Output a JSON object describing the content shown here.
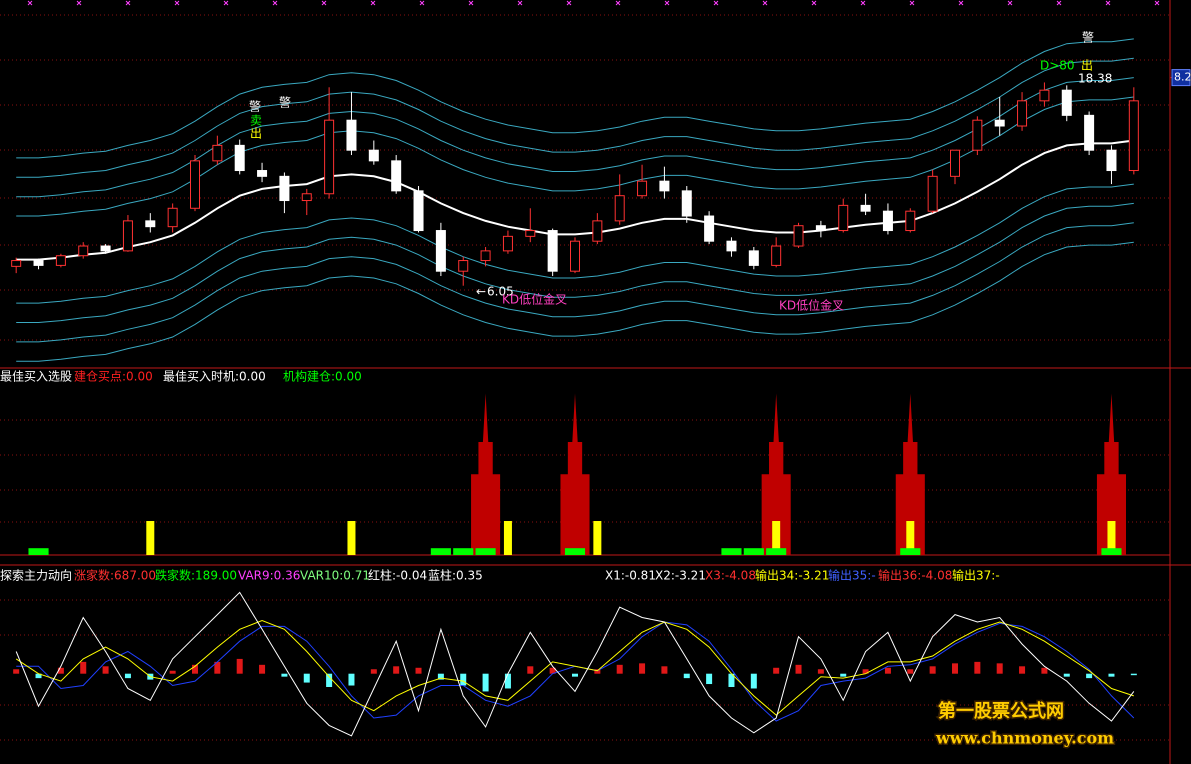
{
  "chart_data": [
    {
      "type": "candlestick",
      "candles": [
        [
          6.25,
          6.34,
          6.18,
          6.31
        ],
        [
          6.31,
          6.33,
          6.22,
          6.26
        ],
        [
          6.26,
          6.38,
          6.24,
          6.36
        ],
        [
          6.36,
          6.5,
          6.33,
          6.46
        ],
        [
          6.46,
          6.48,
          6.38,
          6.41
        ],
        [
          6.41,
          6.78,
          6.4,
          6.72
        ],
        [
          6.72,
          6.8,
          6.6,
          6.66
        ],
        [
          6.66,
          6.9,
          6.6,
          6.85
        ],
        [
          6.85,
          7.4,
          6.82,
          7.34
        ],
        [
          7.34,
          7.6,
          7.3,
          7.5
        ],
        [
          7.5,
          7.56,
          7.2,
          7.24
        ],
        [
          7.24,
          7.32,
          7.12,
          7.18
        ],
        [
          7.18,
          7.22,
          6.8,
          6.93
        ],
        [
          6.93,
          7.05,
          6.78,
          7.0
        ],
        [
          7.0,
          8.1,
          6.95,
          7.76
        ],
        [
          7.76,
          8.05,
          7.4,
          7.45
        ],
        [
          7.45,
          7.55,
          7.3,
          7.34
        ],
        [
          7.34,
          7.4,
          7.0,
          7.03
        ],
        [
          7.03,
          7.08,
          6.6,
          6.62
        ],
        [
          6.62,
          6.7,
          6.15,
          6.2
        ],
        [
          6.2,
          6.35,
          6.05,
          6.31
        ],
        [
          6.31,
          6.45,
          6.25,
          6.41
        ],
        [
          6.41,
          6.62,
          6.38,
          6.56
        ],
        [
          6.56,
          6.85,
          6.5,
          6.62
        ],
        [
          6.62,
          6.64,
          6.15,
          6.2
        ],
        [
          6.2,
          6.55,
          6.18,
          6.51
        ],
        [
          6.51,
          6.8,
          6.48,
          6.72
        ],
        [
          6.72,
          7.2,
          6.68,
          6.98
        ],
        [
          6.98,
          7.3,
          6.95,
          7.13
        ],
        [
          7.13,
          7.28,
          6.95,
          7.03
        ],
        [
          7.03,
          7.08,
          6.7,
          6.77
        ],
        [
          6.77,
          6.82,
          6.48,
          6.51
        ],
        [
          6.51,
          6.55,
          6.35,
          6.41
        ],
        [
          6.41,
          6.45,
          6.22,
          6.26
        ],
        [
          6.26,
          6.55,
          6.24,
          6.46
        ],
        [
          6.46,
          6.7,
          6.44,
          6.67
        ],
        [
          6.67,
          6.72,
          6.55,
          6.62
        ],
        [
          6.62,
          6.95,
          6.6,
          6.88
        ],
        [
          6.88,
          7.0,
          6.78,
          6.82
        ],
        [
          6.82,
          6.9,
          6.58,
          6.62
        ],
        [
          6.62,
          6.85,
          6.6,
          6.82
        ],
        [
          6.82,
          7.25,
          6.8,
          7.18
        ],
        [
          7.18,
          7.45,
          7.1,
          7.45
        ],
        [
          7.45,
          7.8,
          7.4,
          7.76
        ],
        [
          7.76,
          8.0,
          7.6,
          7.7
        ],
        [
          7.7,
          8.05,
          7.65,
          7.96
        ],
        [
          7.96,
          8.15,
          7.9,
          8.07
        ],
        [
          8.07,
          8.12,
          7.75,
          7.81
        ],
        [
          7.81,
          7.85,
          7.4,
          7.45
        ],
        [
          7.45,
          7.5,
          7.1,
          7.24
        ],
        [
          7.24,
          8.1,
          7.2,
          7.96
        ]
      ],
      "up_color": "#ff3232",
      "down_color": "#ffffff",
      "ma": {
        "color": "#ffffff",
        "values": [
          6.32,
          6.32,
          6.34,
          6.37,
          6.39,
          6.45,
          6.5,
          6.57,
          6.7,
          6.85,
          6.98,
          7.05,
          7.08,
          7.1,
          7.18,
          7.2,
          7.18,
          7.12,
          7.02,
          6.9,
          6.8,
          6.72,
          6.66,
          6.62,
          6.58,
          6.58,
          6.6,
          6.64,
          6.7,
          6.74,
          6.74,
          6.7,
          6.66,
          6.62,
          6.6,
          6.6,
          6.62,
          6.65,
          6.68,
          6.7,
          6.72,
          6.8,
          6.9,
          7.02,
          7.15,
          7.3,
          7.42,
          7.5,
          7.52,
          7.52,
          7.55
        ]
      },
      "bands": {
        "color": "#3aa8c0",
        "offsets": [
          0.45,
          0.65,
          0.85,
          1.05
        ]
      },
      "ylim": [
        5.2,
        8.95
      ],
      "yticks": [
        8.2
      ],
      "grid": true,
      "annotations": [
        {
          "text": "警",
          "color": "#ffffff"
        },
        {
          "text": "警",
          "color": "#ffffff"
        },
        {
          "text": "卖",
          "color": "#00ff00"
        },
        {
          "text": "出",
          "color": "#ffff00"
        },
        {
          "text": "6.05",
          "color": "#ffffff"
        },
        {
          "text": "KD低位金叉",
          "color": "#ff40c0"
        },
        {
          "text": "KD低位金叉",
          "color": "#ff40c0"
        },
        {
          "text": "D>80",
          "color": "#00ff00"
        },
        {
          "text": "出",
          "color": "#ffff00"
        },
        {
          "text": "18.38",
          "color": "#ffffff"
        },
        {
          "text": "警",
          "color": "#ffffff"
        }
      ]
    },
    {
      "type": "bar",
      "title": "最佳买入选股",
      "ylim": [
        0,
        100
      ],
      "series": [
        {
          "name": "建仓买点:0.00",
          "color": "#ff2020",
          "bar_color": "#c00000",
          "values": [
            0,
            0,
            0,
            0,
            0,
            0,
            0,
            0,
            0,
            0,
            0,
            0,
            0,
            0,
            0,
            0,
            0,
            0,
            0,
            0,
            0,
            95,
            0,
            0,
            0,
            95,
            0,
            0,
            0,
            0,
            0,
            0,
            0,
            0,
            95,
            0,
            0,
            0,
            0,
            0,
            95,
            0,
            0,
            0,
            0,
            0,
            0,
            0,
            0,
            95,
            0
          ]
        },
        {
          "name": "最佳买入时机:0.00",
          "color": "#ffffff",
          "bar_color": "#ffff00",
          "values": [
            0,
            0,
            0,
            0,
            0,
            0,
            20,
            0,
            0,
            0,
            0,
            0,
            0,
            0,
            0,
            20,
            0,
            0,
            0,
            0,
            0,
            0,
            20,
            0,
            0,
            0,
            20,
            0,
            0,
            0,
            0,
            0,
            0,
            0,
            20,
            0,
            0,
            0,
            0,
            0,
            20,
            0,
            0,
            0,
            0,
            0,
            0,
            0,
            0,
            20,
            0
          ]
        },
        {
          "name": "机构建仓:0.00",
          "color": "#00ff00",
          "bar_color": "#00ff00",
          "values": [
            0,
            4,
            0,
            0,
            0,
            0,
            0,
            0,
            0,
            0,
            0,
            0,
            0,
            0,
            0,
            0,
            0,
            0,
            0,
            4,
            4,
            4,
            0,
            0,
            0,
            4,
            0,
            0,
            0,
            0,
            0,
            0,
            4,
            4,
            4,
            0,
            0,
            0,
            0,
            0,
            4,
            0,
            0,
            0,
            0,
            0,
            0,
            0,
            0,
            4,
            0
          ]
        }
      ]
    },
    {
      "type": "oscillator",
      "title": "探索主力动向",
      "ylim": [
        -5.5,
        6
      ],
      "legend": [
        {
          "text": "涨家数:687.00",
          "color": "#ff3030"
        },
        {
          "text": "跌家数:189.00",
          "color": "#00ff00"
        },
        {
          "text": "VAR9:0.36",
          "color": "#ff40ff"
        },
        {
          "text": "VAR10:0.71",
          "color": "#80ff80"
        },
        {
          "text": "红柱:-0.04",
          "color": "#ffffff"
        },
        {
          "text": "蓝柱:0.35",
          "color": "#ffffff"
        },
        {
          "text": "X1:-0.81",
          "color": "#ffffff"
        },
        {
          "text": "X2:-3.21",
          "color": "#ffffff"
        },
        {
          "text": "X3:-4.08",
          "color": "#ff3030"
        },
        {
          "text": "输出34:-3.21",
          "color": "#ffff00"
        },
        {
          "text": "输出35:-",
          "color": "#4060ff"
        },
        {
          "text": "输出36:-4.08",
          "color": "#ff3030"
        },
        {
          "text": "输出37:-",
          "color": "#ffff00"
        }
      ],
      "lines": [
        {
          "color": "#ffffff",
          "values": [
            1.5,
            -2.2,
            0.5,
            3.8,
            1.5,
            -1.0,
            -1.8,
            1.0,
            2.5,
            4.0,
            5.5,
            3.0,
            0.5,
            -2.0,
            -3.5,
            -4.2,
            -1.0,
            2.2,
            -2.5,
            3.0,
            -1.5,
            -3.6,
            0.0,
            2.8,
            0.5,
            -1.2,
            1.5,
            4.5,
            3.8,
            3.5,
            1.0,
            -1.5,
            -3.0,
            -4.0,
            -3.0,
            2.5,
            1.0,
            -1.8,
            1.5,
            2.8,
            -0.5,
            2.5,
            4.0,
            3.5,
            3.8,
            2.0,
            0.5,
            -0.5,
            -2.0,
            -3.2,
            -1.2
          ]
        },
        {
          "color": "#ffff00",
          "values": [
            1.0,
            0.0,
            -0.5,
            1.0,
            1.8,
            1.0,
            -0.2,
            -0.5,
            0.5,
            1.8,
            3.0,
            3.6,
            3.0,
            1.5,
            -0.2,
            -1.8,
            -2.5,
            -1.5,
            -0.8,
            -0.3,
            -0.5,
            -1.5,
            -1.8,
            -0.5,
            0.8,
            0.5,
            0.2,
            1.5,
            2.8,
            3.5,
            3.0,
            1.8,
            0.0,
            -1.5,
            -2.8,
            -1.5,
            -0.2,
            -0.3,
            0.0,
            0.8,
            0.8,
            1.2,
            2.2,
            3.0,
            3.5,
            3.0,
            2.2,
            1.2,
            0.2,
            -1.0,
            -1.5
          ]
        },
        {
          "color": "#2040ff",
          "values": [
            0.5,
            0.5,
            -1.0,
            -0.8,
            0.8,
            1.5,
            0.5,
            -0.8,
            -0.5,
            0.8,
            2.2,
            3.2,
            3.2,
            2.2,
            0.5,
            -1.5,
            -3.0,
            -2.8,
            -1.5,
            -0.8,
            -0.8,
            -1.8,
            -2.2,
            -1.5,
            0.0,
            0.5,
            0.2,
            1.0,
            2.5,
            3.5,
            3.3,
            2.2,
            0.3,
            -1.8,
            -3.2,
            -2.5,
            -0.8,
            -0.5,
            -0.3,
            0.5,
            0.6,
            1.0,
            2.0,
            2.8,
            3.4,
            3.2,
            2.5,
            1.5,
            0.3,
            -1.5,
            -3.0
          ]
        }
      ],
      "histogram": {
        "up_color": "#e01818",
        "down_color": "#60ffff",
        "values": [
          0.3,
          -0.3,
          0.4,
          0.8,
          0.5,
          -0.3,
          -0.4,
          0.2,
          0.6,
          0.8,
          1.0,
          0.6,
          -0.2,
          -0.6,
          -0.9,
          -0.8,
          0.3,
          0.5,
          0.4,
          -0.4,
          -0.8,
          -1.2,
          -1.0,
          0.5,
          0.4,
          -0.2,
          0.3,
          0.6,
          0.7,
          0.5,
          -0.3,
          -0.7,
          -0.9,
          -1.0,
          0.4,
          0.6,
          0.3,
          -0.2,
          0.3,
          0.4,
          0.3,
          0.5,
          0.7,
          0.8,
          0.7,
          0.5,
          0.4,
          -0.2,
          -0.3,
          -0.2,
          -0.1
        ]
      }
    }
  ],
  "watermark": {
    "line1": "第一股票公式网",
    "line2": "www.chnmoney.com"
  }
}
